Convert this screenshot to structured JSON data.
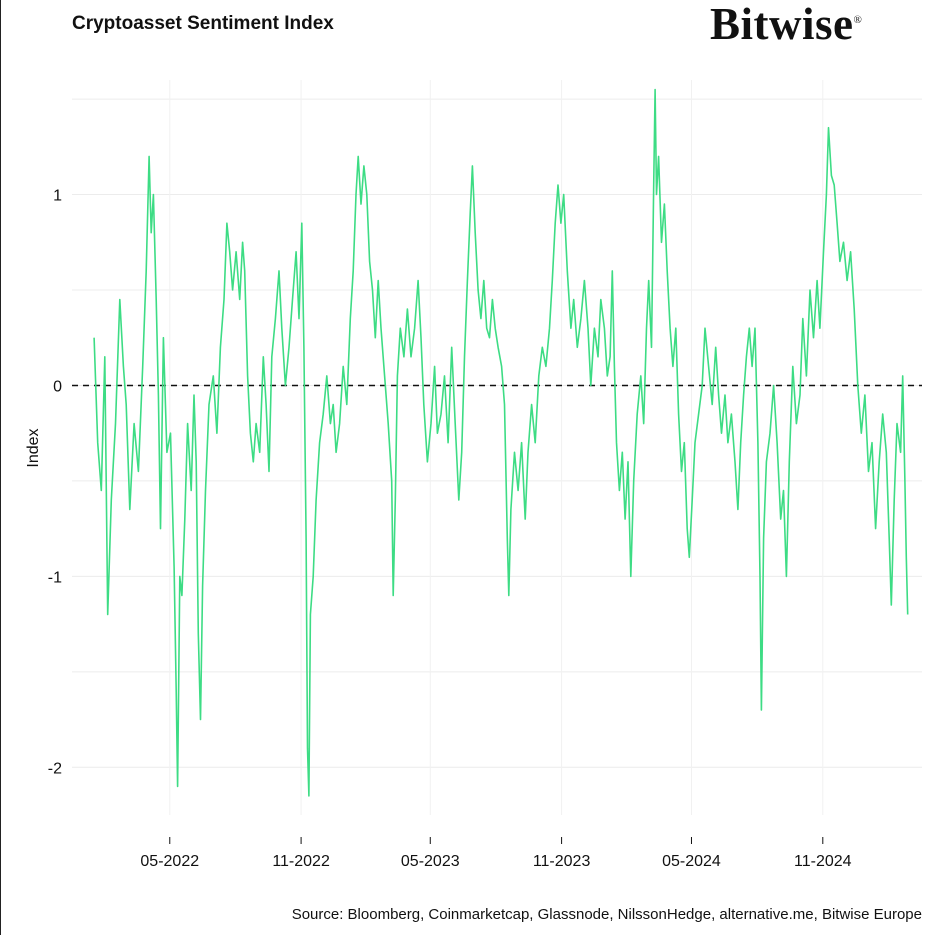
{
  "title": "Cryptoasset Sentiment Index",
  "logo_text": "Bitwise",
  "source": "Source: Bloomberg, Coinmarketcap, Glassnode, NilssonHedge, alternative.me, Bitwise Europe",
  "chart_data": {
    "type": "line",
    "ylabel": "Index",
    "xlabel": "",
    "ylim": [
      -2.25,
      1.6
    ],
    "xlim": [
      "2021-12-15",
      "2025-03-20"
    ],
    "yticks": [
      -2,
      -1,
      0,
      1
    ],
    "xticks": [
      {
        "date": "2022-05-01",
        "label": "05-2022"
      },
      {
        "date": "2022-11-01",
        "label": "11-2022"
      },
      {
        "date": "2023-05-01",
        "label": "05-2023"
      },
      {
        "date": "2023-11-01",
        "label": "11-2023"
      },
      {
        "date": "2024-05-01",
        "label": "05-2024"
      },
      {
        "date": "2024-11-01",
        "label": "11-2024"
      }
    ],
    "reference_line": {
      "y": 0,
      "style": "dashed"
    },
    "grid": true,
    "series": [
      {
        "color": "#3ddc84",
        "points": [
          [
            "2022-01-15",
            0.25
          ],
          [
            "2022-01-20",
            -0.3
          ],
          [
            "2022-01-25",
            -0.55
          ],
          [
            "2022-01-30",
            0.15
          ],
          [
            "2022-02-03",
            -1.2
          ],
          [
            "2022-02-08",
            -0.6
          ],
          [
            "2022-02-14",
            -0.2
          ],
          [
            "2022-02-20",
            0.45
          ],
          [
            "2022-02-25",
            0.1
          ],
          [
            "2022-03-01",
            -0.1
          ],
          [
            "2022-03-06",
            -0.65
          ],
          [
            "2022-03-12",
            -0.2
          ],
          [
            "2022-03-18",
            -0.45
          ],
          [
            "2022-03-24",
            0.1
          ],
          [
            "2022-03-29",
            0.6
          ],
          [
            "2022-04-02",
            1.2
          ],
          [
            "2022-04-05",
            0.8
          ],
          [
            "2022-04-08",
            1.0
          ],
          [
            "2022-04-12",
            0.45
          ],
          [
            "2022-04-15",
            -0.05
          ],
          [
            "2022-04-18",
            -0.75
          ],
          [
            "2022-04-22",
            0.25
          ],
          [
            "2022-04-27",
            -0.35
          ],
          [
            "2022-05-02",
            -0.25
          ],
          [
            "2022-05-07",
            -0.95
          ],
          [
            "2022-05-10",
            -1.6
          ],
          [
            "2022-05-12",
            -2.1
          ],
          [
            "2022-05-15",
            -1.0
          ],
          [
            "2022-05-18",
            -1.1
          ],
          [
            "2022-05-22",
            -0.7
          ],
          [
            "2022-05-26",
            -0.2
          ],
          [
            "2022-05-31",
            -0.55
          ],
          [
            "2022-06-04",
            -0.05
          ],
          [
            "2022-06-07",
            -0.4
          ],
          [
            "2022-06-10",
            -1.3
          ],
          [
            "2022-06-13",
            -1.75
          ],
          [
            "2022-06-16",
            -1.05
          ],
          [
            "2022-06-20",
            -0.55
          ],
          [
            "2022-06-25",
            -0.1
          ],
          [
            "2022-07-01",
            0.05
          ],
          [
            "2022-07-06",
            -0.25
          ],
          [
            "2022-07-11",
            0.2
          ],
          [
            "2022-07-16",
            0.45
          ],
          [
            "2022-07-20",
            0.85
          ],
          [
            "2022-07-24",
            0.7
          ],
          [
            "2022-07-28",
            0.5
          ],
          [
            "2022-08-02",
            0.7
          ],
          [
            "2022-08-07",
            0.45
          ],
          [
            "2022-08-11",
            0.75
          ],
          [
            "2022-08-14",
            0.6
          ],
          [
            "2022-08-18",
            0.05
          ],
          [
            "2022-08-22",
            -0.25
          ],
          [
            "2022-08-26",
            -0.4
          ],
          [
            "2022-08-30",
            -0.2
          ],
          [
            "2022-09-04",
            -0.35
          ],
          [
            "2022-09-09",
            0.15
          ],
          [
            "2022-09-13",
            -0.1
          ],
          [
            "2022-09-17",
            -0.45
          ],
          [
            "2022-09-21",
            0.15
          ],
          [
            "2022-09-26",
            0.35
          ],
          [
            "2022-10-01",
            0.6
          ],
          [
            "2022-10-05",
            0.3
          ],
          [
            "2022-10-10",
            0.0
          ],
          [
            "2022-10-15",
            0.2
          ],
          [
            "2022-10-20",
            0.45
          ],
          [
            "2022-10-25",
            0.7
          ],
          [
            "2022-10-29",
            0.35
          ],
          [
            "2022-11-02",
            0.85
          ],
          [
            "2022-11-05",
            0.2
          ],
          [
            "2022-11-08",
            -0.8
          ],
          [
            "2022-11-10",
            -1.9
          ],
          [
            "2022-11-12",
            -2.15
          ],
          [
            "2022-11-14",
            -1.2
          ],
          [
            "2022-11-18",
            -1.0
          ],
          [
            "2022-11-22",
            -0.6
          ],
          [
            "2022-11-27",
            -0.3
          ],
          [
            "2022-12-02",
            -0.15
          ],
          [
            "2022-12-07",
            0.05
          ],
          [
            "2022-12-12",
            -0.2
          ],
          [
            "2022-12-16",
            -0.1
          ],
          [
            "2022-12-20",
            -0.35
          ],
          [
            "2022-12-25",
            -0.2
          ],
          [
            "2022-12-30",
            0.1
          ],
          [
            "2023-01-04",
            -0.1
          ],
          [
            "2023-01-09",
            0.35
          ],
          [
            "2023-01-13",
            0.6
          ],
          [
            "2023-01-17",
            1.0
          ],
          [
            "2023-01-20",
            1.2
          ],
          [
            "2023-01-24",
            0.95
          ],
          [
            "2023-01-28",
            1.15
          ],
          [
            "2023-02-01",
            1.0
          ],
          [
            "2023-02-05",
            0.65
          ],
          [
            "2023-02-09",
            0.5
          ],
          [
            "2023-02-13",
            0.25
          ],
          [
            "2023-02-17",
            0.55
          ],
          [
            "2023-02-21",
            0.3
          ],
          [
            "2023-02-26",
            0.05
          ],
          [
            "2023-03-03",
            -0.2
          ],
          [
            "2023-03-08",
            -0.5
          ],
          [
            "2023-03-10",
            -1.1
          ],
          [
            "2023-03-13",
            -0.6
          ],
          [
            "2023-03-16",
            0.05
          ],
          [
            "2023-03-20",
            0.3
          ],
          [
            "2023-03-25",
            0.15
          ],
          [
            "2023-03-30",
            0.4
          ],
          [
            "2023-04-04",
            0.15
          ],
          [
            "2023-04-09",
            0.3
          ],
          [
            "2023-04-14",
            0.55
          ],
          [
            "2023-04-18",
            0.25
          ],
          [
            "2023-04-22",
            -0.1
          ],
          [
            "2023-04-27",
            -0.4
          ],
          [
            "2023-05-02",
            -0.2
          ],
          [
            "2023-05-07",
            0.1
          ],
          [
            "2023-05-11",
            -0.25
          ],
          [
            "2023-05-16",
            -0.15
          ],
          [
            "2023-05-21",
            0.05
          ],
          [
            "2023-05-26",
            -0.3
          ],
          [
            "2023-05-31",
            0.2
          ],
          [
            "2023-06-05",
            -0.2
          ],
          [
            "2023-06-10",
            -0.6
          ],
          [
            "2023-06-14",
            -0.35
          ],
          [
            "2023-06-18",
            0.15
          ],
          [
            "2023-06-22",
            0.55
          ],
          [
            "2023-06-26",
            0.9
          ],
          [
            "2023-06-29",
            1.15
          ],
          [
            "2023-07-03",
            0.8
          ],
          [
            "2023-07-07",
            0.5
          ],
          [
            "2023-07-11",
            0.35
          ],
          [
            "2023-07-15",
            0.55
          ],
          [
            "2023-07-19",
            0.3
          ],
          [
            "2023-07-23",
            0.25
          ],
          [
            "2023-07-27",
            0.45
          ],
          [
            "2023-07-31",
            0.3
          ],
          [
            "2023-08-04",
            0.2
          ],
          [
            "2023-08-09",
            0.1
          ],
          [
            "2023-08-13",
            -0.1
          ],
          [
            "2023-08-17",
            -0.8
          ],
          [
            "2023-08-19",
            -1.1
          ],
          [
            "2023-08-22",
            -0.65
          ],
          [
            "2023-08-27",
            -0.35
          ],
          [
            "2023-09-01",
            -0.55
          ],
          [
            "2023-09-06",
            -0.3
          ],
          [
            "2023-09-11",
            -0.7
          ],
          [
            "2023-09-15",
            -0.35
          ],
          [
            "2023-09-20",
            -0.1
          ],
          [
            "2023-09-25",
            -0.3
          ],
          [
            "2023-09-30",
            0.05
          ],
          [
            "2023-10-05",
            0.2
          ],
          [
            "2023-10-10",
            0.1
          ],
          [
            "2023-10-15",
            0.3
          ],
          [
            "2023-10-19",
            0.55
          ],
          [
            "2023-10-23",
            0.85
          ],
          [
            "2023-10-27",
            1.05
          ],
          [
            "2023-10-31",
            0.85
          ],
          [
            "2023-11-04",
            1.0
          ],
          [
            "2023-11-09",
            0.6
          ],
          [
            "2023-11-14",
            0.3
          ],
          [
            "2023-11-18",
            0.45
          ],
          [
            "2023-11-23",
            0.2
          ],
          [
            "2023-11-28",
            0.35
          ],
          [
            "2023-12-03",
            0.55
          ],
          [
            "2023-12-08",
            0.3
          ],
          [
            "2023-12-12",
            0.0
          ],
          [
            "2023-12-17",
            0.3
          ],
          [
            "2023-12-22",
            0.15
          ],
          [
            "2023-12-26",
            0.45
          ],
          [
            "2023-12-31",
            0.3
          ],
          [
            "2024-01-04",
            0.05
          ],
          [
            "2024-01-08",
            0.15
          ],
          [
            "2024-01-11",
            0.6
          ],
          [
            "2024-01-14",
            0.1
          ],
          [
            "2024-01-17",
            -0.3
          ],
          [
            "2024-01-21",
            -0.55
          ],
          [
            "2024-01-25",
            -0.35
          ],
          [
            "2024-01-29",
            -0.7
          ],
          [
            "2024-02-02",
            -0.4
          ],
          [
            "2024-02-06",
            -1.0
          ],
          [
            "2024-02-10",
            -0.5
          ],
          [
            "2024-02-15",
            -0.15
          ],
          [
            "2024-02-20",
            0.05
          ],
          [
            "2024-02-24",
            -0.2
          ],
          [
            "2024-02-28",
            0.3
          ],
          [
            "2024-03-02",
            0.55
          ],
          [
            "2024-03-06",
            0.2
          ],
          [
            "2024-03-09",
            1.05
          ],
          [
            "2024-03-11",
            1.55
          ],
          [
            "2024-03-13",
            1.0
          ],
          [
            "2024-03-16",
            1.2
          ],
          [
            "2024-03-20",
            0.75
          ],
          [
            "2024-03-24",
            0.95
          ],
          [
            "2024-03-28",
            0.6
          ],
          [
            "2024-04-01",
            0.3
          ],
          [
            "2024-04-05",
            0.1
          ],
          [
            "2024-04-09",
            0.3
          ],
          [
            "2024-04-13",
            -0.15
          ],
          [
            "2024-04-17",
            -0.45
          ],
          [
            "2024-04-21",
            -0.3
          ],
          [
            "2024-04-25",
            -0.75
          ],
          [
            "2024-04-28",
            -0.9
          ],
          [
            "2024-05-02",
            -0.6
          ],
          [
            "2024-05-06",
            -0.3
          ],
          [
            "2024-05-11",
            -0.15
          ],
          [
            "2024-05-16",
            0.0
          ],
          [
            "2024-05-20",
            0.3
          ],
          [
            "2024-05-25",
            0.1
          ],
          [
            "2024-05-30",
            -0.1
          ],
          [
            "2024-06-04",
            0.2
          ],
          [
            "2024-06-08",
            -0.05
          ],
          [
            "2024-06-12",
            -0.25
          ],
          [
            "2024-06-17",
            -0.05
          ],
          [
            "2024-06-21",
            -0.3
          ],
          [
            "2024-06-26",
            -0.15
          ],
          [
            "2024-07-01",
            -0.4
          ],
          [
            "2024-07-05",
            -0.65
          ],
          [
            "2024-07-09",
            -0.3
          ],
          [
            "2024-07-13",
            -0.05
          ],
          [
            "2024-07-17",
            0.15
          ],
          [
            "2024-07-21",
            0.3
          ],
          [
            "2024-07-25",
            0.1
          ],
          [
            "2024-07-29",
            0.3
          ],
          [
            "2024-08-02",
            -0.3
          ],
          [
            "2024-08-05",
            -1.0
          ],
          [
            "2024-08-07",
            -1.7
          ],
          [
            "2024-08-10",
            -0.8
          ],
          [
            "2024-08-14",
            -0.4
          ],
          [
            "2024-08-19",
            -0.25
          ],
          [
            "2024-08-24",
            0.0
          ],
          [
            "2024-08-29",
            -0.3
          ],
          [
            "2024-09-03",
            -0.7
          ],
          [
            "2024-09-07",
            -0.55
          ],
          [
            "2024-09-11",
            -1.0
          ],
          [
            "2024-09-15",
            -0.4
          ],
          [
            "2024-09-20",
            0.1
          ],
          [
            "2024-09-25",
            -0.2
          ],
          [
            "2024-09-30",
            -0.05
          ],
          [
            "2024-10-04",
            0.35
          ],
          [
            "2024-10-09",
            0.05
          ],
          [
            "2024-10-14",
            0.5
          ],
          [
            "2024-10-19",
            0.25
          ],
          [
            "2024-10-24",
            0.55
          ],
          [
            "2024-10-28",
            0.3
          ],
          [
            "2024-11-02",
            0.7
          ],
          [
            "2024-11-06",
            1.0
          ],
          [
            "2024-11-09",
            1.35
          ],
          [
            "2024-11-13",
            1.1
          ],
          [
            "2024-11-17",
            1.05
          ],
          [
            "2024-11-21",
            0.85
          ],
          [
            "2024-11-25",
            0.65
          ],
          [
            "2024-11-30",
            0.75
          ],
          [
            "2024-12-05",
            0.55
          ],
          [
            "2024-12-10",
            0.7
          ],
          [
            "2024-12-15",
            0.4
          ],
          [
            "2024-12-20",
            0.0
          ],
          [
            "2024-12-25",
            -0.25
          ],
          [
            "2024-12-30",
            -0.05
          ],
          [
            "2025-01-04",
            -0.45
          ],
          [
            "2025-01-09",
            -0.3
          ],
          [
            "2025-01-14",
            -0.75
          ],
          [
            "2025-01-19",
            -0.4
          ],
          [
            "2025-01-24",
            -0.15
          ],
          [
            "2025-01-29",
            -0.35
          ],
          [
            "2025-02-02",
            -0.8
          ],
          [
            "2025-02-05",
            -1.15
          ],
          [
            "2025-02-09",
            -0.6
          ],
          [
            "2025-02-13",
            -0.2
          ],
          [
            "2025-02-18",
            -0.35
          ],
          [
            "2025-02-21",
            0.05
          ],
          [
            "2025-02-24",
            -0.5
          ],
          [
            "2025-02-26",
            -0.9
          ],
          [
            "2025-02-28",
            -1.2
          ]
        ]
      }
    ]
  }
}
